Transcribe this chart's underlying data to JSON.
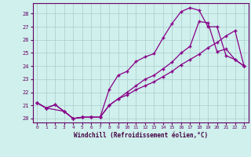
{
  "xlabel": "Windchill (Refroidissement éolien,°C)",
  "bg_color": "#cff0ec",
  "line_color": "#880088",
  "marker": "+",
  "grid_color": "#aacccc",
  "xlim": [
    -0.5,
    23.5
  ],
  "ylim": [
    19.7,
    28.8
  ],
  "yticks": [
    20,
    21,
    22,
    23,
    24,
    25,
    26,
    27,
    28
  ],
  "xticks": [
    0,
    1,
    2,
    3,
    4,
    5,
    6,
    7,
    8,
    9,
    10,
    11,
    12,
    13,
    14,
    15,
    16,
    17,
    18,
    19,
    20,
    21,
    22,
    23
  ],
  "line1_x": [
    0,
    1,
    2,
    3,
    4,
    5,
    6,
    7,
    8,
    9,
    10,
    11,
    12,
    13,
    14,
    15,
    16,
    17,
    18,
    19,
    20,
    21,
    22,
    23
  ],
  "line1_y": [
    21.2,
    20.8,
    21.05,
    20.55,
    20.0,
    20.1,
    20.1,
    20.1,
    22.2,
    23.3,
    23.6,
    24.35,
    24.7,
    24.95,
    26.15,
    27.25,
    28.15,
    28.45,
    28.25,
    27.0,
    27.0,
    24.8,
    24.5,
    24.0
  ],
  "line2_x": [
    0,
    1,
    3,
    4,
    5,
    6,
    7,
    8,
    9,
    10,
    11,
    12,
    13,
    14,
    15,
    16,
    17,
    18,
    19,
    20,
    21,
    22,
    23
  ],
  "line2_y": [
    21.2,
    20.8,
    20.55,
    20.0,
    20.1,
    20.1,
    20.1,
    21.0,
    21.5,
    22.0,
    22.5,
    23.0,
    23.3,
    23.8,
    24.3,
    25.0,
    25.5,
    27.4,
    27.3,
    25.1,
    25.3,
    24.5,
    24.0
  ],
  "line3_x": [
    0,
    1,
    2,
    3,
    4,
    5,
    6,
    7,
    8,
    9,
    10,
    11,
    12,
    13,
    14,
    15,
    16,
    17,
    18,
    19,
    20,
    21,
    22,
    23
  ],
  "line3_y": [
    21.2,
    20.8,
    21.05,
    20.55,
    20.0,
    20.1,
    20.1,
    20.1,
    21.0,
    21.5,
    21.8,
    22.2,
    22.5,
    22.8,
    23.2,
    23.6,
    24.1,
    24.5,
    24.9,
    25.4,
    25.8,
    26.3,
    26.7,
    24.0
  ]
}
